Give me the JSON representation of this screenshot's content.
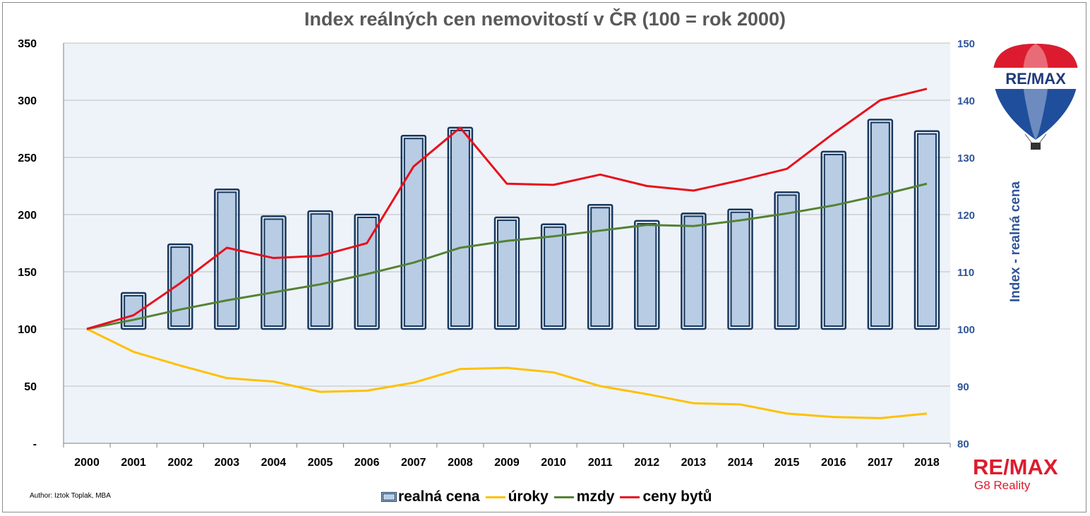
{
  "title": "Index reálných cen nemovitostí v ČR (100 = rok 2000)",
  "author": "Author: Iztok Toplak, MBA",
  "brand": {
    "name": "RE/MAX",
    "sub": "G8 Reality",
    "balloon_text": "RE/MAX"
  },
  "colors": {
    "bar_fill": "#b8cce4",
    "bar_edge": "#17375e",
    "uroky": "#ffc000",
    "mzdy": "#548235",
    "ceny": "#e8101c",
    "right_axis": "#2f5597",
    "grid": "#bfbfbf",
    "plot_bg": "#eef3f9"
  },
  "chart_data": {
    "type": "bar+line",
    "title": "Index reálných cen nemovitostí v ČR (100 = rok 2000)",
    "categories": [
      "2000",
      "2001",
      "2002",
      "2003",
      "2004",
      "2005",
      "2006",
      "2007",
      "2008",
      "2009",
      "2010",
      "2011",
      "2012",
      "2013",
      "2014",
      "2015",
      "2016",
      "2017",
      "2018"
    ],
    "y_left": {
      "min": 0,
      "max": 350,
      "ticks": [
        "-",
        "50",
        "100",
        "150",
        "200",
        "250",
        "300",
        "350"
      ]
    },
    "y_right": {
      "min": 80,
      "max": 150,
      "label": "Index - realná cena",
      "ticks": [
        "80",
        "90",
        "100",
        "110",
        "120",
        "130",
        "140",
        "150"
      ]
    },
    "series": [
      {
        "name": "realná cena",
        "kind": "bar",
        "axis": "right",
        "base": 100,
        "values": [
          100,
          106.3,
          114.8,
          124.4,
          119.7,
          120.6,
          120.0,
          133.8,
          135.2,
          119.5,
          118.3,
          121.7,
          118.9,
          120.2,
          120.9,
          123.9,
          131.0,
          136.6,
          134.6
        ]
      },
      {
        "name": "úroky",
        "kind": "line",
        "axis": "left",
        "values": [
          100,
          80,
          68,
          57,
          54,
          45,
          46,
          53,
          65,
          66,
          62,
          50,
          43,
          35,
          34,
          26,
          23,
          22,
          26
        ]
      },
      {
        "name": "mzdy",
        "kind": "line",
        "axis": "left",
        "values": [
          100,
          108,
          117,
          125,
          132,
          139,
          148,
          158,
          171,
          177,
          181,
          186,
          191,
          190,
          195,
          201,
          208,
          217,
          227
        ]
      },
      {
        "name": "ceny bytů",
        "kind": "line",
        "axis": "left",
        "values": [
          100,
          112,
          140,
          171,
          162,
          164,
          175,
          242,
          276,
          227,
          226,
          235,
          225,
          221,
          230,
          240,
          271,
          300,
          310
        ]
      }
    ],
    "legend_position": "bottom",
    "grid": true
  }
}
